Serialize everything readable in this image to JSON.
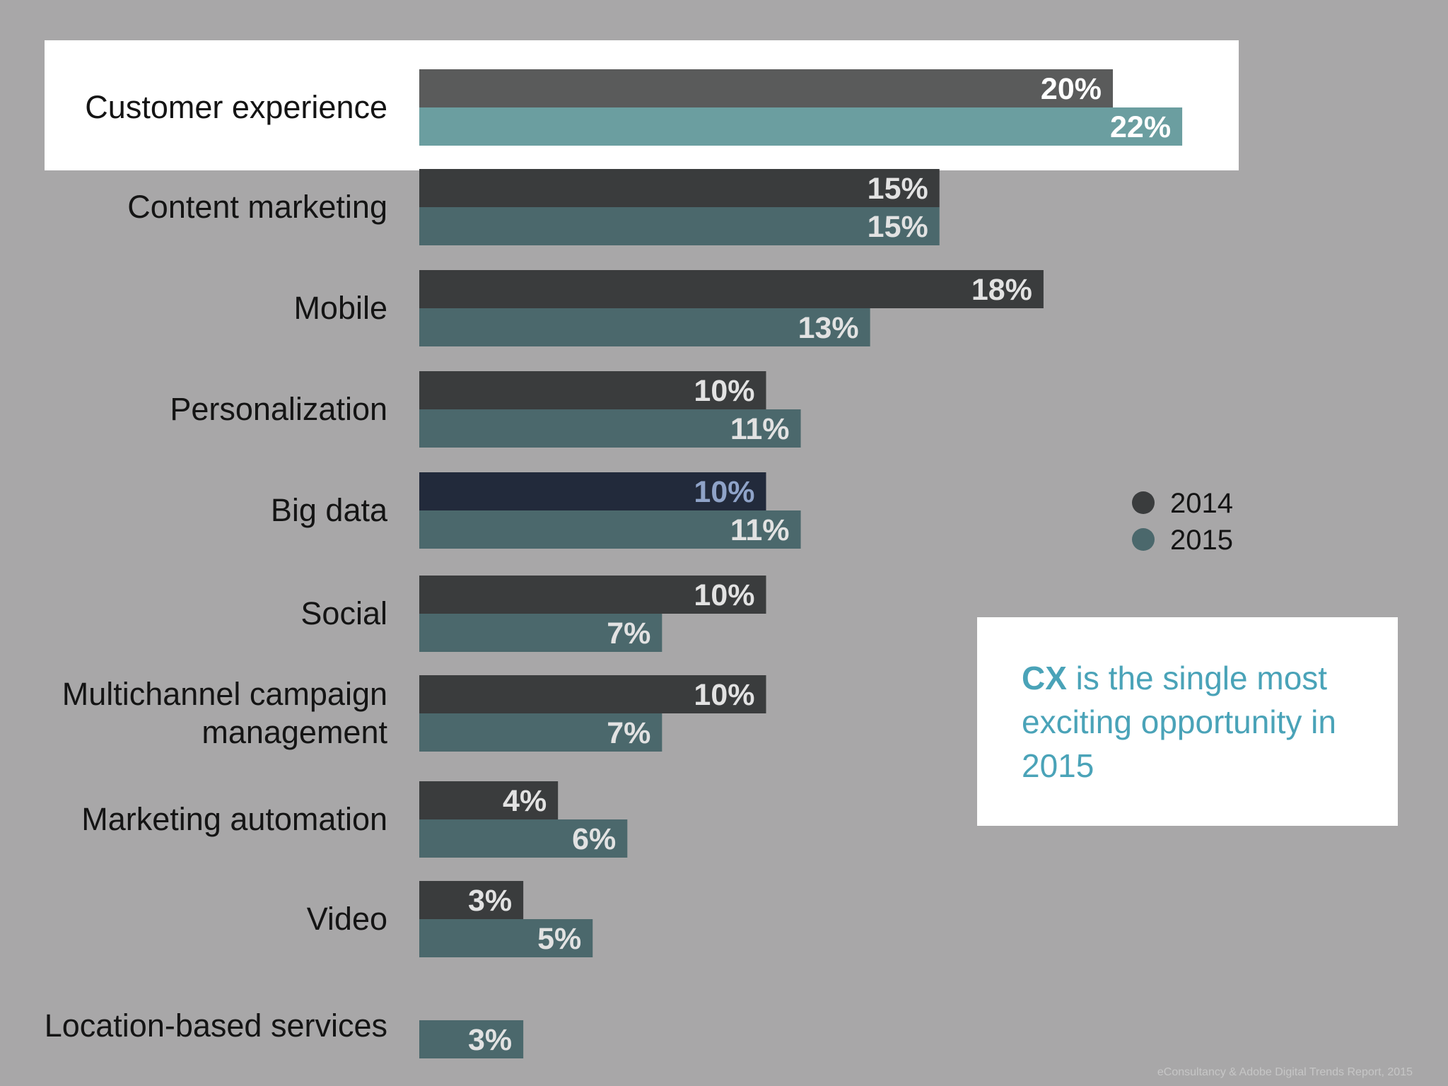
{
  "chart_data": {
    "type": "bar",
    "orientation": "horizontal",
    "categories": [
      "Customer experience",
      "Content marketing",
      "Mobile",
      "Personalization",
      "Big data",
      "Social",
      "Multichannel campaign management",
      "Marketing automation",
      "Video",
      "Location-based services"
    ],
    "category_lines": [
      [
        "Customer experience"
      ],
      [
        "Content marketing"
      ],
      [
        "Mobile"
      ],
      [
        "Personalization"
      ],
      [
        "Big data"
      ],
      [
        "Social"
      ],
      [
        "Multichannel campaign",
        "management"
      ],
      [
        "Marketing automation"
      ],
      [
        "Video"
      ],
      [
        "Location-based services"
      ]
    ],
    "series": [
      {
        "name": "2014",
        "color": "#3a3c3d",
        "values": [
          20,
          15,
          18,
          10,
          10,
          10,
          10,
          4,
          3,
          null
        ],
        "labels": [
          "20%",
          "15%",
          "18%",
          "10%",
          "10%",
          "10%",
          "10%",
          "4%",
          "3%",
          ""
        ]
      },
      {
        "name": "2015",
        "color": "#4b686c",
        "values": [
          22,
          15,
          13,
          11,
          11,
          7,
          7,
          6,
          5,
          3
        ],
        "labels": [
          "22%",
          "15%",
          "13%",
          "11%",
          "11%",
          "7%",
          "7%",
          "6%",
          "5%",
          "3%"
        ]
      }
    ],
    "highlighted_category": "Customer experience",
    "highlight_colors": {
      "2014": "#5a5b5b",
      "2015": "#6b9ea0"
    },
    "special_bar": {
      "category": "Big data",
      "series": "2014",
      "color": "#222a3b",
      "label_color": "#8fa3c8"
    },
    "legend_position": "right",
    "grid": false,
    "title": "",
    "xlabel": "",
    "ylabel": ""
  },
  "callout": {
    "highlight": "CX",
    "text": " is the single most exciting opportunity in 2015"
  },
  "footer": {
    "source": "eConsultancy & Adobe Digital Trends Report, 2015"
  },
  "colors": {
    "background": "#a8a7a8",
    "bar_label": "#e2e2e2",
    "highlight_label": "#ffffff",
    "callout_text": "#4aa3b8"
  }
}
